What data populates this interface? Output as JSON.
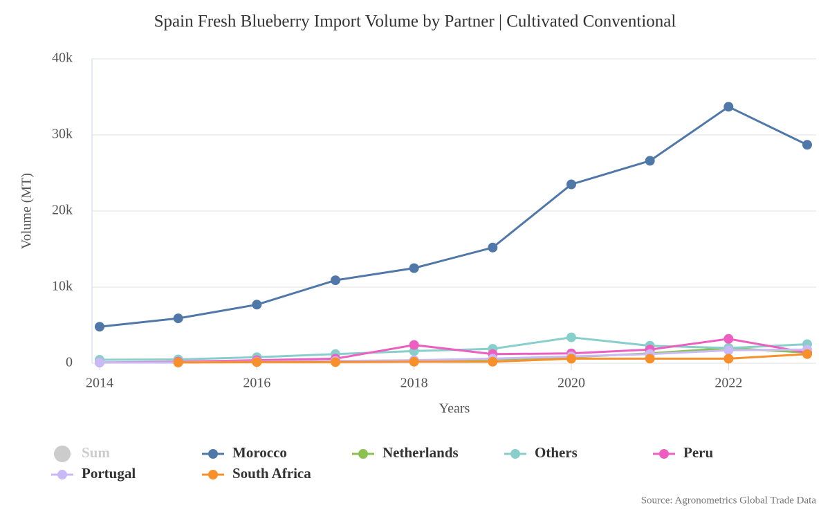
{
  "chart_data": {
    "type": "line",
    "title": "Spain Fresh Blueberry Import Volume by Partner | Cultivated Conventional",
    "x_label": "Years",
    "y_label": "Volume (MT)",
    "source": "Source: Agronometrics Global Trade Data",
    "x": [
      2014,
      2015,
      2016,
      2017,
      2018,
      2019,
      2020,
      2021,
      2022,
      2023
    ],
    "xlim": [
      2014,
      2023
    ],
    "xticks": [
      2014,
      2016,
      2018,
      2020,
      2022
    ],
    "ylim": [
      0,
      40000
    ],
    "yticks": [
      0,
      {
        "value": 10000,
        "label": "10k"
      },
      {
        "value": 20000,
        "label": "20k"
      },
      {
        "value": 30000,
        "label": "30k"
      },
      {
        "value": 40000,
        "label": "40k"
      }
    ],
    "grid": true,
    "series": [
      {
        "name": "Sum",
        "color": "#cccccc",
        "visible": false
      },
      {
        "name": "Morocco",
        "color": "#4f78a8",
        "values": [
          4800,
          5900,
          7700,
          10900,
          12500,
          15200,
          23500,
          26600,
          33700,
          28700
        ]
      },
      {
        "name": "Netherlands",
        "color": "#8cc152",
        "values": [
          100,
          100,
          200,
          300,
          300,
          500,
          800,
          1300,
          2000,
          1400
        ]
      },
      {
        "name": "Others",
        "color": "#88cfcb",
        "values": [
          450,
          500,
          800,
          1200,
          1600,
          1900,
          3400,
          2300,
          2000,
          2500
        ]
      },
      {
        "name": "Peru",
        "color": "#ec5fc0",
        "values": [
          100,
          200,
          400,
          600,
          2400,
          1200,
          1300,
          1800,
          3200,
          1400
        ]
      },
      {
        "name": "Portugal",
        "color": "#c9b9f5",
        "values": [
          100,
          100,
          200,
          300,
          400,
          600,
          900,
          1200,
          1700,
          1800
        ]
      },
      {
        "name": "South Africa",
        "color": "#f7902a",
        "values": [
          null,
          100,
          150,
          150,
          200,
          200,
          600,
          600,
          600,
          1200
        ]
      }
    ]
  }
}
